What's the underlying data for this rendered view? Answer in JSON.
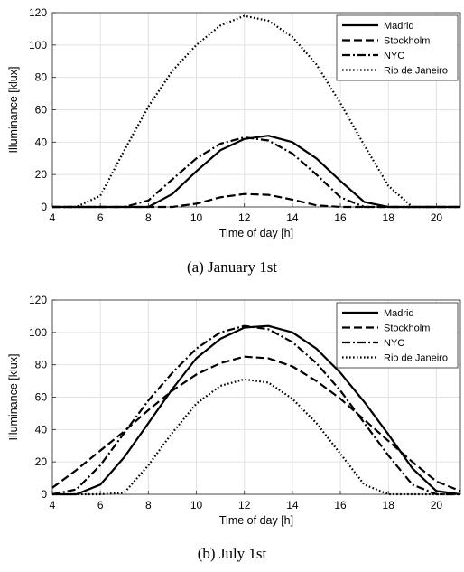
{
  "chart_data": [
    {
      "type": "line",
      "caption": "(a) January 1st",
      "xlabel": "Time of day [h]",
      "ylabel": "Illuminance [klux]",
      "xlim": [
        4,
        21
      ],
      "ylim": [
        0,
        120
      ],
      "xticks": [
        4,
        6,
        8,
        10,
        12,
        14,
        16,
        18,
        20
      ],
      "yticks": [
        0,
        20,
        40,
        60,
        80,
        100,
        120
      ],
      "grid": true,
      "legend_position": "top-right",
      "x": [
        4,
        5,
        6,
        7,
        8,
        9,
        10,
        11,
        12,
        13,
        14,
        15,
        16,
        17,
        18,
        19,
        20,
        21
      ],
      "series": [
        {
          "name": "Madrid",
          "dash": "solid",
          "values": [
            0,
            0,
            0,
            0,
            0,
            8,
            22,
            35,
            42,
            44,
            40,
            30,
            16,
            3,
            0,
            0,
            0,
            0
          ]
        },
        {
          "name": "Stockholm",
          "dash": "dashed",
          "values": [
            0,
            0,
            0,
            0,
            0,
            0,
            2,
            6,
            8,
            7.5,
            4.5,
            1,
            0,
            0,
            0,
            0,
            0,
            0
          ]
        },
        {
          "name": "NYC",
          "dash": "dashdot",
          "values": [
            0,
            0,
            0,
            0,
            4,
            17,
            30,
            39,
            43,
            41,
            33,
            20,
            6,
            0,
            0,
            0,
            0,
            0
          ]
        },
        {
          "name": "Rio de Janeiro",
          "dash": "dotted",
          "values": [
            0,
            0,
            7,
            35,
            62,
            84,
            100,
            112,
            118,
            115,
            105,
            88,
            64,
            38,
            13,
            0,
            0,
            0
          ]
        }
      ]
    },
    {
      "type": "line",
      "caption": "(b) July 1st",
      "xlabel": "Time of day [h]",
      "ylabel": "Illuminance [klux]",
      "xlim": [
        4,
        21
      ],
      "ylim": [
        0,
        120
      ],
      "xticks": [
        4,
        6,
        8,
        10,
        12,
        14,
        16,
        18,
        20
      ],
      "yticks": [
        0,
        20,
        40,
        60,
        80,
        100,
        120
      ],
      "grid": true,
      "legend_position": "top-right",
      "x": [
        4,
        5,
        6,
        7,
        8,
        9,
        10,
        11,
        12,
        13,
        14,
        15,
        16,
        17,
        18,
        19,
        20,
        21
      ],
      "series": [
        {
          "name": "Madrid",
          "dash": "solid",
          "values": [
            0,
            0,
            6,
            23,
            44,
            65,
            84,
            96,
            103,
            104,
            100,
            90,
            75,
            57,
            37,
            16,
            2,
            0
          ]
        },
        {
          "name": "Stockholm",
          "dash": "dashed",
          "values": [
            4,
            15,
            27,
            39,
            52,
            64,
            74,
            81,
            85,
            84,
            79,
            70,
            59,
            46,
            33,
            20,
            8,
            2
          ]
        },
        {
          "name": "NYC",
          "dash": "dashdot",
          "values": [
            0,
            3,
            18,
            38,
            58,
            75,
            90,
            100,
            104,
            102,
            94,
            81,
            64,
            44,
            24,
            6,
            0,
            0
          ]
        },
        {
          "name": "Rio de Janeiro",
          "dash": "dotted",
          "values": [
            0,
            0,
            0,
            1,
            18,
            38,
            56,
            67,
            71,
            69,
            59,
            44,
            25,
            6,
            0,
            0,
            0,
            0
          ]
        }
      ]
    }
  ]
}
